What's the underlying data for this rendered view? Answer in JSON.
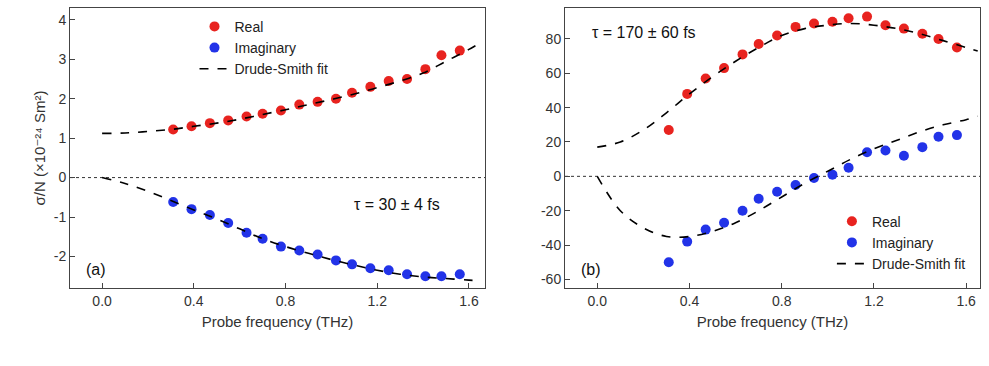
{
  "chart_data": [
    {
      "type": "scatter",
      "panel_label": "(a)",
      "annotations": [
        "τ = 30 ± 4 fs"
      ],
      "x_label": "Probe frequency (THz)",
      "y_label": "σ/N (×10⁻²⁴ Sm²)",
      "xlim": [
        -0.14,
        1.67
      ],
      "ylim": [
        -2.8,
        4.3
      ],
      "xticks": [
        {
          "value": 0,
          "label": "0.0"
        },
        0.4,
        0.8,
        1.2,
        1.6
      ],
      "yticks": [
        -2,
        -1,
        0,
        1,
        2,
        3,
        4
      ],
      "legend": "upper left",
      "series": [
        {
          "name": "Real",
          "type": "scatter",
          "marker": "circle",
          "color": "#e8231f",
          "x": [
            0.31,
            0.39,
            0.47,
            0.55,
            0.63,
            0.7,
            0.78,
            0.86,
            0.94,
            1.02,
            1.09,
            1.17,
            1.25,
            1.33,
            1.41,
            1.48,
            1.56
          ],
          "values": [
            1.22,
            1.3,
            1.38,
            1.45,
            1.55,
            1.62,
            1.7,
            1.85,
            1.92,
            2.0,
            2.15,
            2.3,
            2.45,
            2.5,
            2.75,
            3.1,
            3.22
          ]
        },
        {
          "name": "Imaginary",
          "type": "scatter",
          "marker": "circle",
          "color": "#2233e8",
          "x": [
            0.31,
            0.39,
            0.47,
            0.55,
            0.63,
            0.7,
            0.78,
            0.86,
            0.94,
            1.02,
            1.09,
            1.17,
            1.25,
            1.33,
            1.41,
            1.48,
            1.56
          ],
          "values": [
            -0.62,
            -0.8,
            -0.95,
            -1.15,
            -1.4,
            -1.55,
            -1.75,
            -1.85,
            -1.95,
            -2.1,
            -2.2,
            -2.3,
            -2.35,
            -2.45,
            -2.5,
            -2.5,
            -2.45
          ]
        },
        {
          "name": "Drude-Smith fit",
          "type": "line",
          "line_style": "dash",
          "color": "#000000",
          "x": [
            0,
            0.1,
            0.2,
            0.3,
            0.4,
            0.5,
            0.6,
            0.7,
            0.8,
            0.9,
            1.0,
            1.1,
            1.2,
            1.3,
            1.4,
            1.5,
            1.6,
            1.65
          ],
          "values": [
            1.12,
            1.13,
            1.17,
            1.22,
            1.3,
            1.38,
            1.48,
            1.6,
            1.72,
            1.85,
            1.98,
            2.12,
            2.28,
            2.45,
            2.65,
            2.95,
            3.25,
            3.42
          ]
        },
        {
          "name": "Drude-Smith fit",
          "type": "line",
          "line_style": "dash",
          "color": "#000000",
          "x": [
            0,
            0.1,
            0.2,
            0.3,
            0.4,
            0.5,
            0.6,
            0.7,
            0.8,
            0.9,
            1.0,
            1.1,
            1.2,
            1.3,
            1.4,
            1.5,
            1.6,
            1.65
          ],
          "values": [
            0,
            -0.15,
            -0.35,
            -0.58,
            -0.82,
            -1.05,
            -1.3,
            -1.55,
            -1.75,
            -1.92,
            -2.08,
            -2.22,
            -2.35,
            -2.45,
            -2.52,
            -2.56,
            -2.6,
            -2.62
          ]
        }
      ]
    },
    {
      "type": "scatter",
      "panel_label": "(b)",
      "annotations": [
        "τ = 170 ± 60 fs"
      ],
      "x_label": "Probe frequency (THz)",
      "xlim": [
        -0.14,
        1.66
      ],
      "ylim": [
        -65,
        98
      ],
      "xticks": [
        {
          "value": 0,
          "label": "0.0"
        },
        0.4,
        0.8,
        1.2,
        1.6
      ],
      "yticks": [
        -60,
        -40,
        -20,
        0,
        20,
        40,
        60,
        80
      ],
      "legend": "lower right",
      "series": [
        {
          "name": "Real",
          "type": "scatter",
          "marker": "circle",
          "color": "#e8231f",
          "x": [
            0.31,
            0.39,
            0.47,
            0.55,
            0.63,
            0.7,
            0.78,
            0.86,
            0.94,
            1.02,
            1.09,
            1.17,
            1.25,
            1.33,
            1.41,
            1.48,
            1.56
          ],
          "values": [
            27,
            48,
            57,
            63,
            71,
            77,
            82,
            87,
            89,
            90,
            92,
            93,
            88,
            86,
            83,
            80,
            75
          ]
        },
        {
          "name": "Imaginary",
          "type": "scatter",
          "marker": "circle",
          "color": "#2233e8",
          "x": [
            0.31,
            0.39,
            0.47,
            0.55,
            0.63,
            0.7,
            0.78,
            0.86,
            0.94,
            1.02,
            1.09,
            1.17,
            1.25,
            1.33,
            1.41,
            1.48,
            1.56
          ],
          "values": [
            -50,
            -38,
            -31,
            -27,
            -20,
            -13,
            -9,
            -5,
            -1,
            1,
            5,
            14,
            15,
            12,
            17,
            23,
            24
          ]
        },
        {
          "name": "Drude-Smith fit",
          "type": "line",
          "line_style": "dash",
          "color": "#000000",
          "x": [
            0,
            0.1,
            0.2,
            0.3,
            0.4,
            0.5,
            0.6,
            0.7,
            0.8,
            0.9,
            1.0,
            1.1,
            1.2,
            1.3,
            1.4,
            1.5,
            1.6,
            1.65
          ],
          "values": [
            17,
            20,
            27,
            37,
            48,
            58,
            67,
            75,
            82,
            86,
            88,
            89,
            88,
            86,
            83,
            79,
            75,
            73
          ]
        },
        {
          "name": "Drude-Smith fit",
          "type": "line",
          "line_style": "dash",
          "color": "#000000",
          "x": [
            0,
            0.1,
            0.2,
            0.3,
            0.4,
            0.5,
            0.6,
            0.7,
            0.8,
            0.9,
            1.0,
            1.1,
            1.2,
            1.3,
            1.4,
            1.5,
            1.6,
            1.65
          ],
          "values": [
            0,
            -20,
            -30,
            -35,
            -35,
            -32,
            -27,
            -20,
            -12,
            -4,
            3,
            10,
            16,
            21,
            26,
            30,
            33,
            35
          ]
        }
      ]
    }
  ]
}
